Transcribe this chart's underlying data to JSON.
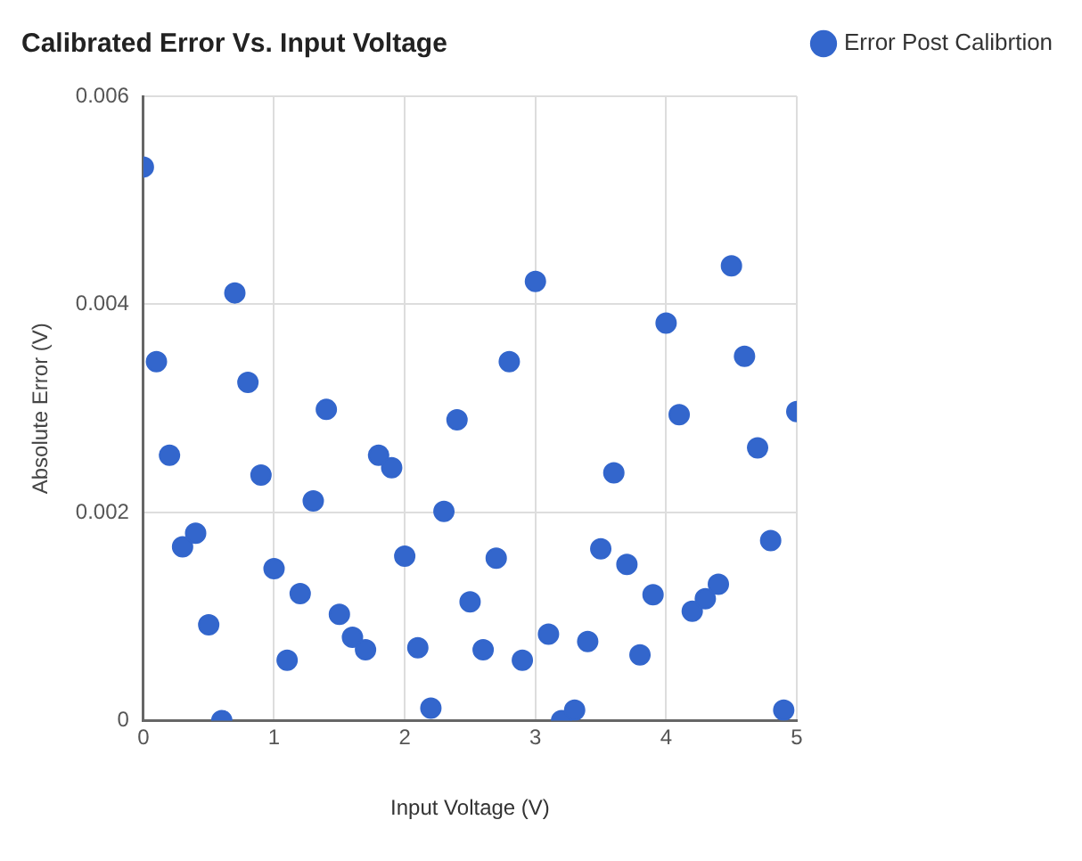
{
  "chart_data": {
    "type": "scatter",
    "title": "Calibrated Error Vs. Input Voltage",
    "xlabel": "Input Voltage (V)",
    "ylabel": "Absolute Error (V)",
    "x": [
      0,
      0.1,
      0.2,
      0.3,
      0.4,
      0.5,
      0.6,
      0.7,
      0.8,
      0.9,
      1,
      1.1,
      1.2,
      1.3,
      1.4,
      1.5,
      1.6,
      1.7,
      1.8,
      1.9,
      2,
      2.1,
      2.2,
      2.3,
      2.4,
      2.5,
      2.6,
      2.7,
      2.8,
      2.9,
      3,
      3.1,
      3.2,
      3.3,
      3.4,
      3.5,
      3.6,
      3.7,
      3.8,
      3.9,
      4,
      4.1,
      4.2,
      4.3,
      4.4,
      4.5,
      4.6,
      4.7,
      4.8,
      4.9,
      5
    ],
    "series": [
      {
        "name": "Error Post Calibrtion",
        "color": "#3366cc",
        "values": [
          0.00532,
          0.00345,
          0.00255,
          0.00167,
          0.0018,
          0.00092,
          0,
          0.00411,
          0.00325,
          0.00236,
          0.00146,
          0.00058,
          0.00122,
          0.00211,
          0.00299,
          0.00102,
          0.0008,
          0.00068,
          0.00255,
          0.00243,
          0.00158,
          0.0007,
          0.00012,
          0.00201,
          0.00289,
          0.00114,
          0.00068,
          0.00156,
          0.00345,
          0.00058,
          0.00422,
          0.00083,
          0,
          0.0001,
          0.00076,
          0.00165,
          0.00238,
          0.0015,
          0.00063,
          0.00121,
          0.00382,
          0.00294,
          0.00105,
          0.00117,
          0.00131,
          0.00437,
          0.0035,
          0.00262,
          0.00173,
          0.0001,
          0.00297
        ]
      }
    ],
    "xlim": [
      0,
      5
    ],
    "xticks": [
      0,
      1,
      2,
      3,
      4,
      5
    ],
    "ylim": [
      0,
      0.006
    ],
    "yticks": [
      0,
      0.002,
      0.004,
      0.006
    ],
    "grid": true,
    "legend": "top right",
    "marker": "circle"
  }
}
